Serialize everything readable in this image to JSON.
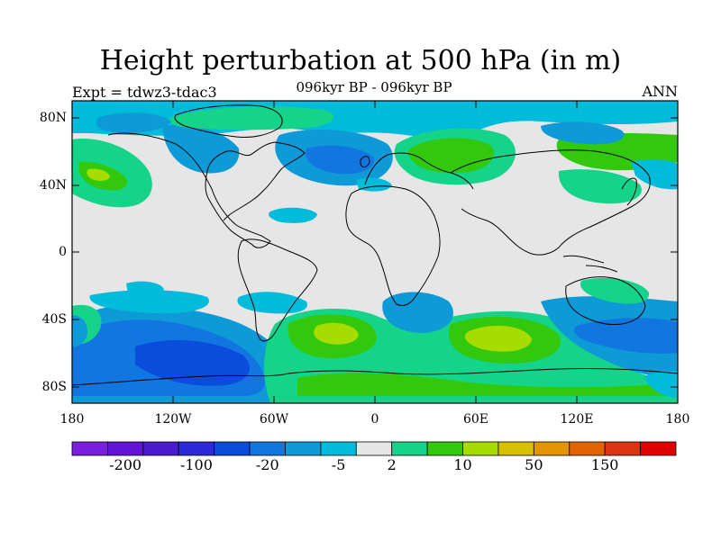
{
  "title": "Height perturbation at 500 hPa (in m)",
  "subtitle": "096kyr BP - 096kyr BP",
  "left_label": "Expt = tdwz3-tdac3",
  "right_label": "ANN",
  "lat_ticks": [
    "80N",
    "40N",
    "0",
    "40S",
    "80S"
  ],
  "lon_ticks": [
    "180",
    "120W",
    "60W",
    "0",
    "60E",
    "120E",
    "180"
  ],
  "colorbar": {
    "colors": [
      "#7a1fe0",
      "#6214d6",
      "#4a1ad0",
      "#2c2ad8",
      "#0a4cdc",
      "#1276e0",
      "#0e9ad6",
      "#00bcda",
      "#e6e6e6",
      "#15d48a",
      "#32c80e",
      "#a6dc00",
      "#d6c000",
      "#e29600",
      "#e26400",
      "#de3214",
      "#e00000"
    ],
    "labels": [
      "-200",
      "-100",
      "-20",
      "-5",
      "2",
      "10",
      "50",
      "150"
    ]
  },
  "chart_data": {
    "type": "heatmap",
    "title": "Height perturbation at 500 hPa (in m)",
    "subtitle": "096kyr BP - 096kyr BP",
    "variable_units": "m",
    "x_ticks": [
      "180",
      "120W",
      "60W",
      "0",
      "60E",
      "120E",
      "180"
    ],
    "y_ticks": [
      "80N",
      "40N",
      "0",
      "40S",
      "80S"
    ],
    "xlim": [
      -180,
      180
    ],
    "ylim": [
      -90,
      90
    ],
    "color_levels": [
      "-200",
      "-100",
      "-20",
      "-5",
      "2",
      "10",
      "50",
      "150"
    ],
    "background_value_band": "-5 to 2"
  }
}
